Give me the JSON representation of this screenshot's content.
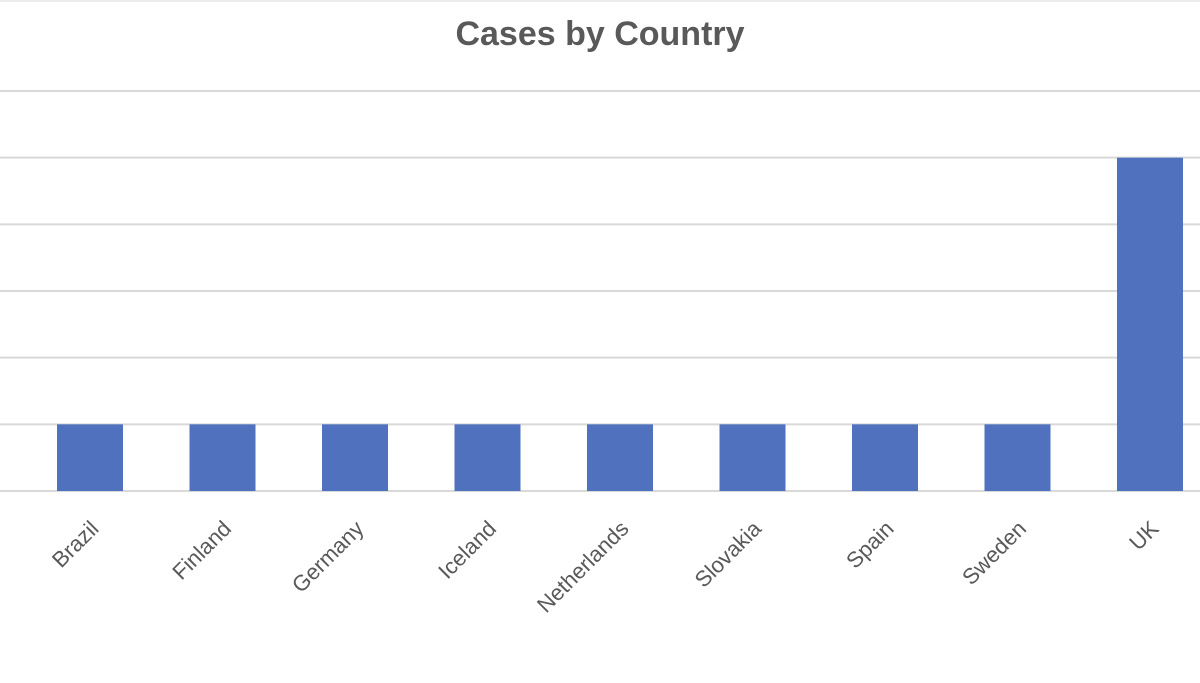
{
  "chart_data": {
    "type": "bar",
    "title": "Cases by Country",
    "xlabel": "",
    "ylabel": "",
    "categories": [
      "Brazil",
      "Finland",
      "Germany",
      "Iceland",
      "Netherlands",
      "Slovakia",
      "Spain",
      "Sweden",
      "UK"
    ],
    "values": [
      1,
      1,
      1,
      1,
      1,
      1,
      1,
      1,
      5
    ],
    "ylim": [
      0,
      6
    ],
    "grid": true,
    "legend": "none",
    "tick_label_rotation": -45,
    "bar_color": "#4f71be",
    "grid_color": "#d9d9d9",
    "text_color": "#595959"
  }
}
